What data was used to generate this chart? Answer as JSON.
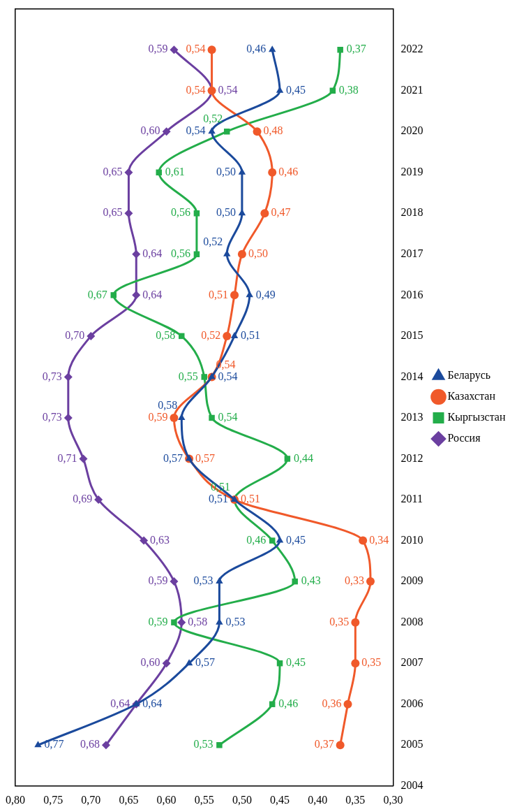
{
  "chart_data": {
    "type": "line",
    "orientation": "horizontal",
    "x": [
      2005,
      2006,
      2007,
      2008,
      2009,
      2010,
      2011,
      2012,
      2013,
      2014,
      2015,
      2016,
      2017,
      2018,
      2019,
      2020,
      2021,
      2022
    ],
    "ylim": [
      2004,
      2023
    ],
    "yticks": [
      2004,
      2005,
      2006,
      2007,
      2008,
      2009,
      2010,
      2011,
      2012,
      2013,
      2014,
      2015,
      2016,
      2017,
      2018,
      2019,
      2020,
      2021,
      2022
    ],
    "xlim": [
      0.8,
      0.3
    ],
    "xticks": [
      {
        "value": 0.3,
        "label": "0,30"
      },
      {
        "value": 0.35,
        "label": "0,35"
      },
      {
        "value": 0.4,
        "label": "0,40"
      },
      {
        "value": 0.45,
        "label": "0,45"
      },
      {
        "value": 0.5,
        "label": "0,50"
      },
      {
        "value": 0.55,
        "label": "0,55"
      },
      {
        "value": 0.6,
        "label": "0,60"
      },
      {
        "value": 0.65,
        "label": "0,65"
      },
      {
        "value": 0.7,
        "label": "0,70"
      },
      {
        "value": 0.75,
        "label": "0,75"
      },
      {
        "value": 0.8,
        "label": "0,80"
      }
    ],
    "legend": "right",
    "series": [
      {
        "name": "Беларусь",
        "color": "#1b4a9c",
        "marker": "triangle",
        "values": [
          0.77,
          0.64,
          0.57,
          0.53,
          0.53,
          0.45,
          0.51,
          0.57,
          0.58,
          0.54,
          0.51,
          0.49,
          0.52,
          0.5,
          0.5,
          0.54,
          0.45,
          0.46
        ],
        "value_labels": [
          "0,77",
          "0,64",
          "0,57",
          "0,53",
          "0,53",
          "0,45",
          "0,51",
          "0,57",
          "0,58",
          "0,54",
          "0,51",
          "0,49",
          "0,52",
          "0,50",
          "0,50",
          "0,54",
          "0,45",
          "0,46"
        ]
      },
      {
        "name": "Казахстан",
        "color": "#f0592a",
        "marker": "circle",
        "values": [
          0.37,
          0.36,
          0.35,
          0.35,
          0.33,
          0.34,
          0.51,
          0.57,
          0.59,
          0.54,
          0.52,
          0.51,
          0.5,
          0.47,
          0.46,
          0.48,
          0.54,
          0.54
        ],
        "value_labels": [
          "0,37",
          "0,36",
          "0,35",
          "0,35",
          "0,33",
          "0,34",
          "0,51",
          "0,57",
          "0,59",
          "0,54",
          "0,52",
          "0,51",
          "0,50",
          "0,47",
          "0,46",
          "0,48",
          "0,54",
          "0,54"
        ]
      },
      {
        "name": "Кыргызстан",
        "color": "#23ad4a",
        "marker": "square",
        "values": [
          0.53,
          0.46,
          0.45,
          0.59,
          0.43,
          0.46,
          0.51,
          0.44,
          0.54,
          0.55,
          0.58,
          0.67,
          0.56,
          0.56,
          0.61,
          0.52,
          0.38,
          0.37
        ],
        "value_labels": [
          "0,53",
          "0,46",
          "0,45",
          "0,59",
          "0,43",
          "0,46",
          "0,51",
          "0,44",
          "0,54",
          "0,55",
          "0,58",
          "0,67",
          "0,56",
          "0,56",
          "0,61",
          "0,52",
          "0,38",
          "0,37"
        ]
      },
      {
        "name": "Россия",
        "color": "#6b3fa0",
        "marker": "diamond",
        "values": [
          0.68,
          0.64,
          0.6,
          0.58,
          0.59,
          0.63,
          0.69,
          0.71,
          0.73,
          0.73,
          0.7,
          0.64,
          0.64,
          0.65,
          0.65,
          0.6,
          0.54,
          0.59
        ],
        "value_labels": [
          "0,68",
          "0,64",
          "0,60",
          "0,58",
          "0,59",
          "0,63",
          "0,69",
          "0,71",
          "0,73",
          "0,73",
          "0,70",
          "0,64",
          "0,64",
          "0,65",
          "0,65",
          "0,60",
          "0,54",
          "0,59"
        ]
      }
    ]
  }
}
